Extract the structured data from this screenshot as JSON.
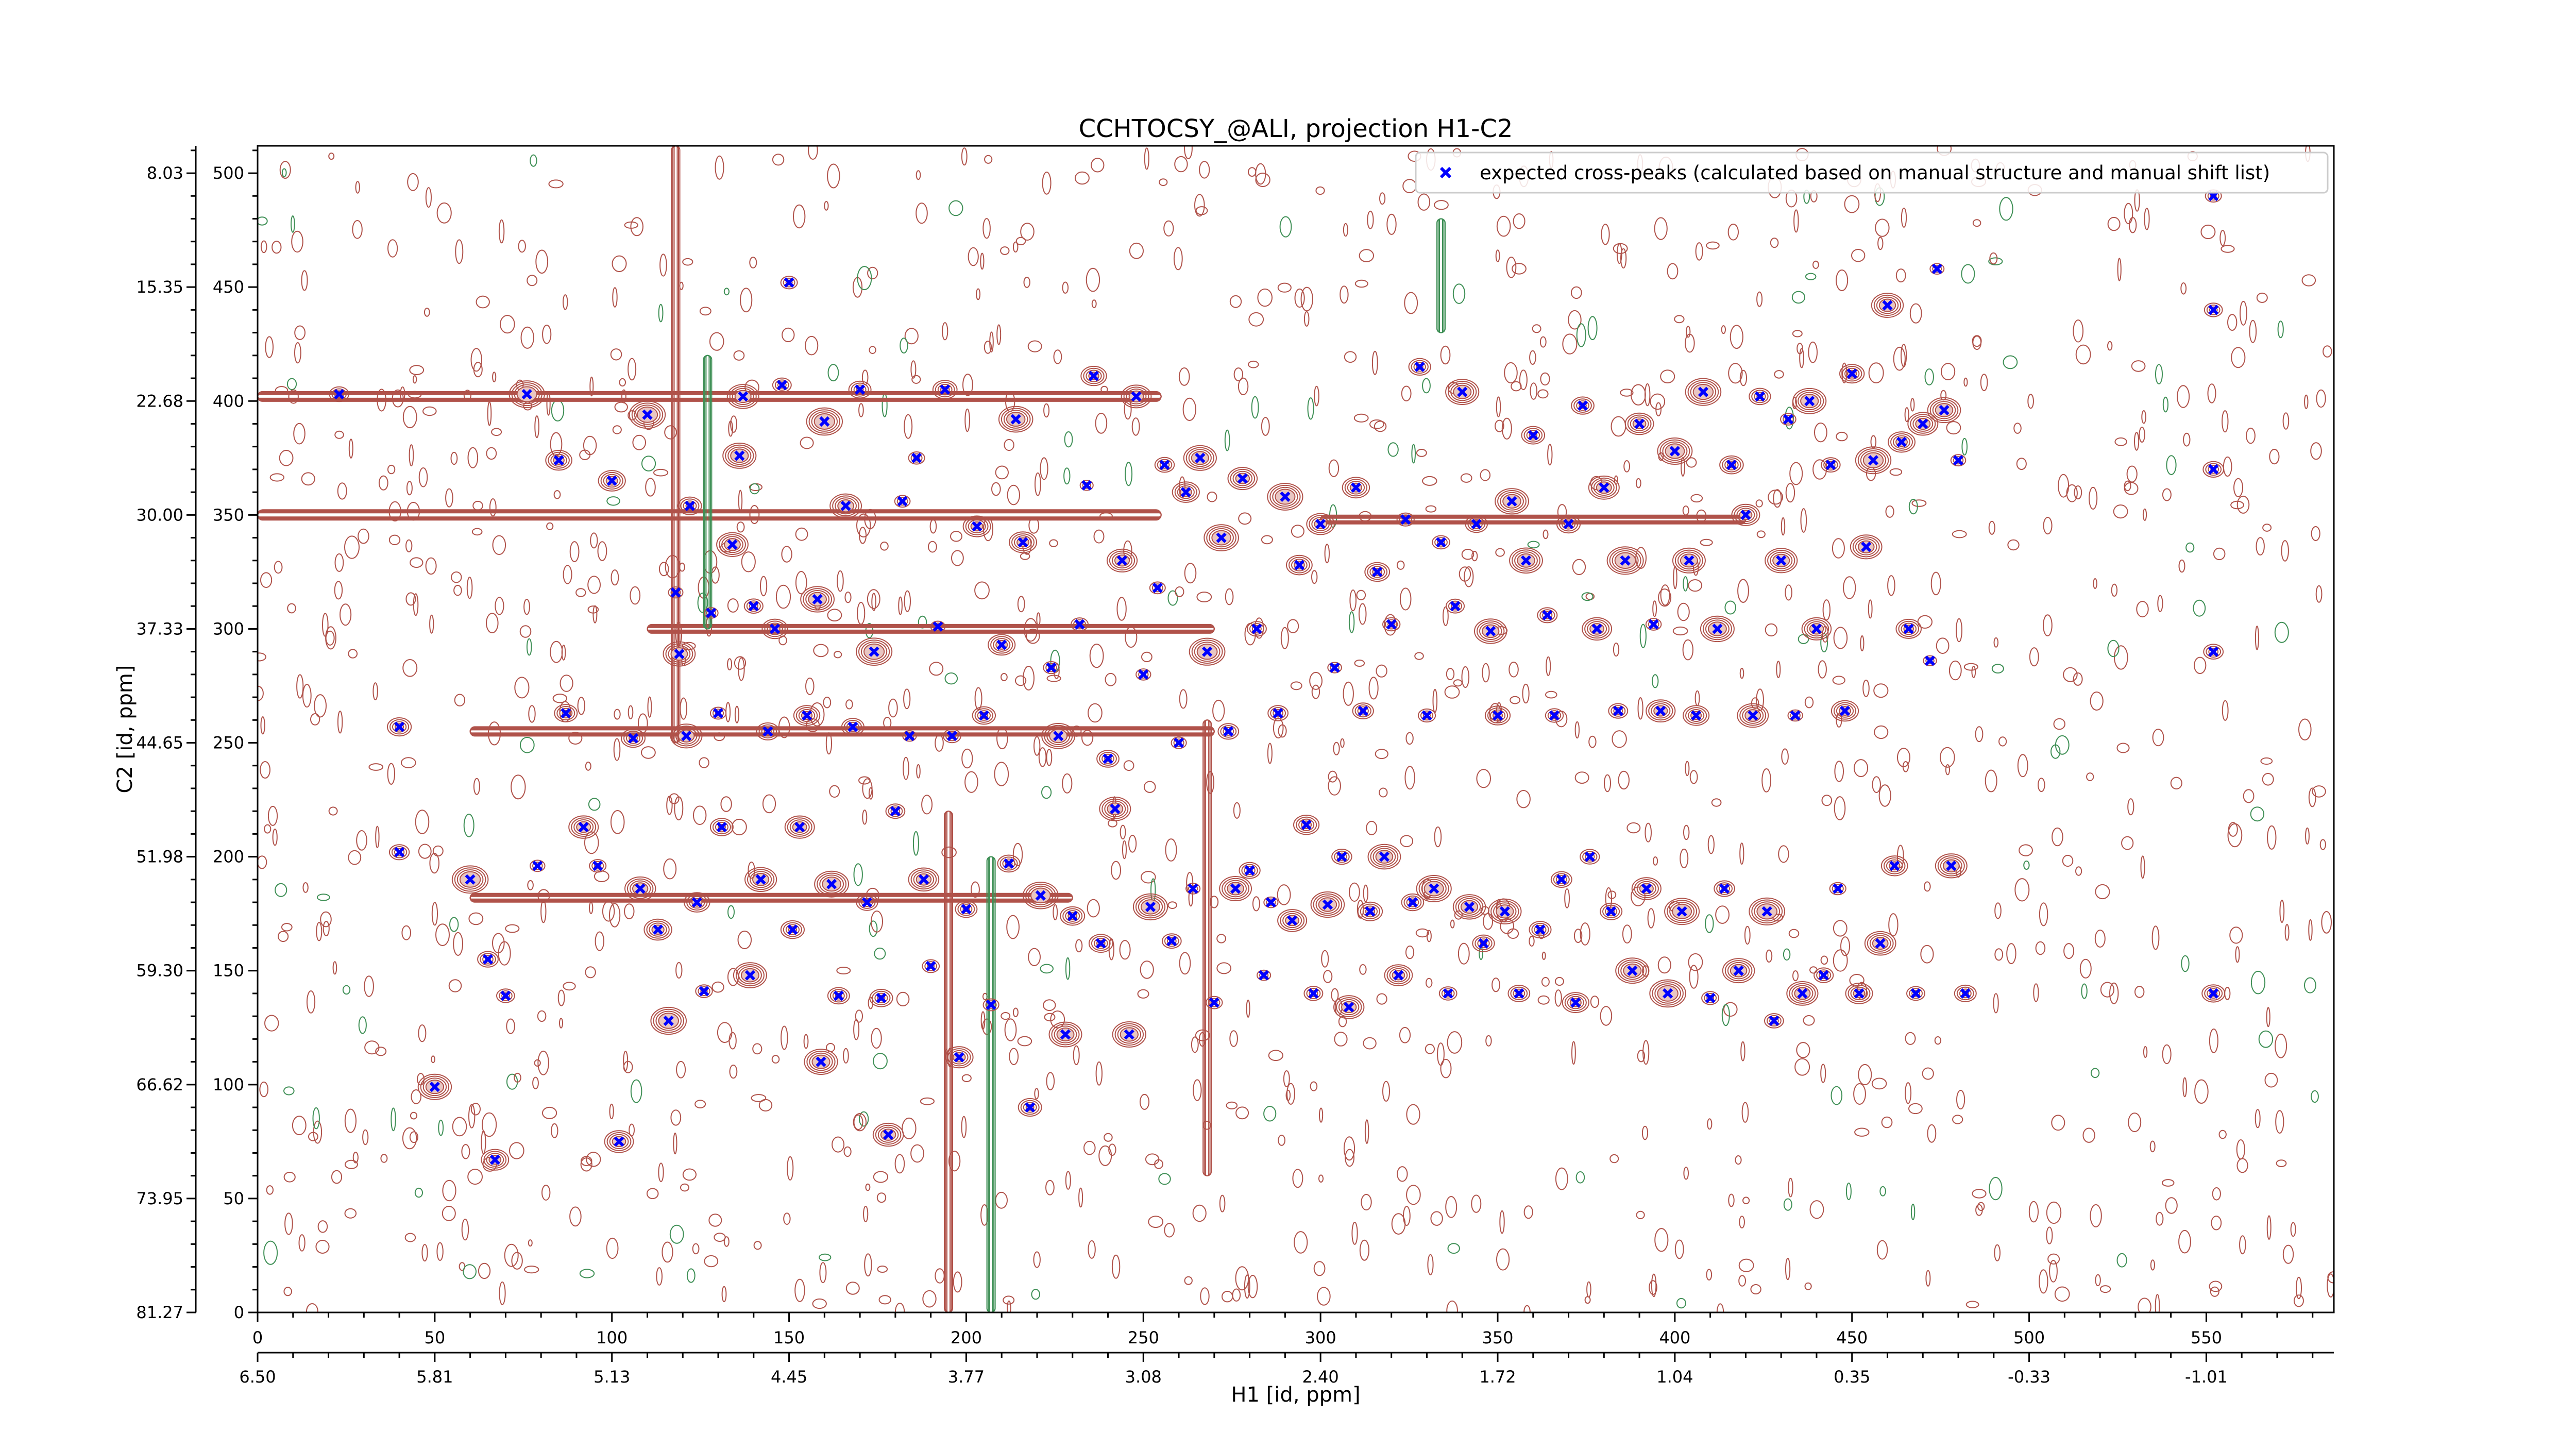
{
  "chart_data": {
    "type": "scatter",
    "title": "CCHTOCSY_@ALI, projection H1-C2",
    "xlabel": "H1 [id, ppm]",
    "ylabel": "C2 [id, ppm]",
    "xlim": [
      0,
      586
    ],
    "ylim": [
      0,
      512
    ],
    "x_ticks": [
      0,
      50,
      100,
      150,
      200,
      250,
      300,
      350,
      400,
      450,
      500,
      550
    ],
    "y_ticks": [
      0,
      50,
      100,
      150,
      200,
      250,
      300,
      350,
      400,
      450,
      500
    ],
    "x_ppm_labels": [
      "6.50",
      "5.81",
      "5.13",
      "4.45",
      "3.77",
      "3.08",
      "2.40",
      "1.72",
      "1.04",
      "0.35",
      "-0.33",
      "-1.01"
    ],
    "y_ppm_labels": [
      "81.27",
      "73.95",
      "66.62",
      "59.30",
      "51.98",
      "44.65",
      "37.33",
      "30.00",
      "22.68",
      "15.35",
      "8.03"
    ],
    "legend": {
      "label": "expected cross-peaks (calculated based on manual structure and manual shift list)",
      "position": "top-right"
    },
    "colors": {
      "marker": "#0000ff",
      "contour_positive": "#b0524a",
      "contour_negative": "#3e8f55",
      "axis": "#000000"
    },
    "series": [
      {
        "name": "expected cross-peaks (calculated based on manual structure and manual shift list)",
        "marker": "x",
        "points": [
          [
            23,
            403
          ],
          [
            40,
            202
          ],
          [
            40,
            257
          ],
          [
            50,
            99
          ],
          [
            60,
            190
          ],
          [
            65,
            155
          ],
          [
            67,
            67
          ],
          [
            70,
            139
          ],
          [
            76,
            403
          ],
          [
            79,
            196
          ],
          [
            85,
            374
          ],
          [
            87,
            263
          ],
          [
            92,
            213
          ],
          [
            96,
            196
          ],
          [
            100,
            365
          ],
          [
            102,
            75
          ],
          [
            106,
            252
          ],
          [
            108,
            186
          ],
          [
            110,
            394
          ],
          [
            113,
            168
          ],
          [
            116,
            128
          ],
          [
            118,
            316
          ],
          [
            119,
            289
          ],
          [
            121,
            253
          ],
          [
            122,
            354
          ],
          [
            124,
            180
          ],
          [
            126,
            141
          ],
          [
            128,
            307
          ],
          [
            130,
            263
          ],
          [
            131,
            213
          ],
          [
            134,
            337
          ],
          [
            136,
            376
          ],
          [
            137,
            402
          ],
          [
            139,
            148
          ],
          [
            140,
            310
          ],
          [
            142,
            190
          ],
          [
            144,
            255
          ],
          [
            146,
            300
          ],
          [
            148,
            407
          ],
          [
            150,
            452
          ],
          [
            151,
            168
          ],
          [
            153,
            213
          ],
          [
            155,
            262
          ],
          [
            158,
            313
          ],
          [
            159,
            110
          ],
          [
            160,
            391
          ],
          [
            162,
            188
          ],
          [
            164,
            139
          ],
          [
            166,
            354
          ],
          [
            168,
            257
          ],
          [
            170,
            405
          ],
          [
            172,
            180
          ],
          [
            174,
            290
          ],
          [
            176,
            138
          ],
          [
            178,
            78
          ],
          [
            180,
            220
          ],
          [
            182,
            356
          ],
          [
            184,
            253
          ],
          [
            186,
            375
          ],
          [
            188,
            190
          ],
          [
            190,
            152
          ],
          [
            192,
            301
          ],
          [
            194,
            405
          ],
          [
            196,
            253
          ],
          [
            198,
            112
          ],
          [
            200,
            177
          ],
          [
            203,
            345
          ],
          [
            205,
            262
          ],
          [
            207,
            135
          ],
          [
            210,
            293
          ],
          [
            212,
            197
          ],
          [
            214,
            392
          ],
          [
            216,
            338
          ],
          [
            218,
            90
          ],
          [
            221,
            183
          ],
          [
            224,
            283
          ],
          [
            226,
            253
          ],
          [
            228,
            122
          ],
          [
            230,
            174
          ],
          [
            232,
            302
          ],
          [
            234,
            363
          ],
          [
            236,
            411
          ],
          [
            238,
            162
          ],
          [
            240,
            243
          ],
          [
            242,
            221
          ],
          [
            244,
            330
          ],
          [
            246,
            122
          ],
          [
            248,
            402
          ],
          [
            250,
            280
          ],
          [
            252,
            178
          ],
          [
            254,
            318
          ],
          [
            256,
            372
          ],
          [
            258,
            163
          ],
          [
            260,
            250
          ],
          [
            262,
            360
          ],
          [
            264,
            186
          ],
          [
            266,
            375
          ],
          [
            268,
            290
          ],
          [
            270,
            136
          ],
          [
            272,
            340
          ],
          [
            274,
            255
          ],
          [
            276,
            186
          ],
          [
            278,
            366
          ],
          [
            280,
            194
          ],
          [
            282,
            300
          ],
          [
            284,
            148
          ],
          [
            286,
            180
          ],
          [
            288,
            263
          ],
          [
            290,
            358
          ],
          [
            292,
            172
          ],
          [
            294,
            328
          ],
          [
            296,
            214
          ],
          [
            298,
            140
          ],
          [
            300,
            346
          ],
          [
            302,
            179
          ],
          [
            304,
            283
          ],
          [
            306,
            200
          ],
          [
            308,
            134
          ],
          [
            310,
            362
          ],
          [
            312,
            264
          ],
          [
            314,
            176
          ],
          [
            316,
            325
          ],
          [
            318,
            200
          ],
          [
            320,
            302
          ],
          [
            322,
            148
          ],
          [
            324,
            348
          ],
          [
            326,
            180
          ],
          [
            328,
            415
          ],
          [
            330,
            262
          ],
          [
            332,
            186
          ],
          [
            334,
            338
          ],
          [
            336,
            140
          ],
          [
            338,
            310
          ],
          [
            340,
            404
          ],
          [
            342,
            178
          ],
          [
            344,
            346
          ],
          [
            346,
            162
          ],
          [
            348,
            299
          ],
          [
            350,
            262
          ],
          [
            352,
            176
          ],
          [
            354,
            356
          ],
          [
            356,
            140
          ],
          [
            358,
            330
          ],
          [
            360,
            385
          ],
          [
            362,
            168
          ],
          [
            364,
            306
          ],
          [
            366,
            262
          ],
          [
            368,
            190
          ],
          [
            370,
            346
          ],
          [
            372,
            136
          ],
          [
            374,
            398
          ],
          [
            376,
            200
          ],
          [
            378,
            300
          ],
          [
            380,
            362
          ],
          [
            382,
            176
          ],
          [
            384,
            264
          ],
          [
            386,
            330
          ],
          [
            388,
            150
          ],
          [
            390,
            390
          ],
          [
            392,
            186
          ],
          [
            394,
            302
          ],
          [
            396,
            264
          ],
          [
            398,
            140
          ],
          [
            400,
            378
          ],
          [
            402,
            176
          ],
          [
            404,
            330
          ],
          [
            406,
            262
          ],
          [
            408,
            404
          ],
          [
            410,
            138
          ],
          [
            412,
            300
          ],
          [
            414,
            186
          ],
          [
            416,
            372
          ],
          [
            418,
            150
          ],
          [
            420,
            350
          ],
          [
            422,
            262
          ],
          [
            424,
            402
          ],
          [
            426,
            176
          ],
          [
            428,
            128
          ],
          [
            430,
            330
          ],
          [
            432,
            392
          ],
          [
            434,
            262
          ],
          [
            436,
            140
          ],
          [
            438,
            400
          ],
          [
            440,
            300
          ],
          [
            442,
            148
          ],
          [
            444,
            372
          ],
          [
            446,
            186
          ],
          [
            448,
            264
          ],
          [
            450,
            412
          ],
          [
            452,
            140
          ],
          [
            454,
            336
          ],
          [
            456,
            374
          ],
          [
            458,
            162
          ],
          [
            460,
            442
          ],
          [
            462,
            196
          ],
          [
            464,
            382
          ],
          [
            466,
            300
          ],
          [
            468,
            140
          ],
          [
            470,
            390
          ],
          [
            472,
            286
          ],
          [
            474,
            458
          ],
          [
            476,
            396
          ],
          [
            478,
            196
          ],
          [
            480,
            374
          ],
          [
            482,
            140
          ],
          [
            552,
            490
          ],
          [
            552,
            440
          ],
          [
            552,
            370
          ],
          [
            552,
            290
          ],
          [
            552,
            140
          ]
        ]
      }
    ]
  }
}
